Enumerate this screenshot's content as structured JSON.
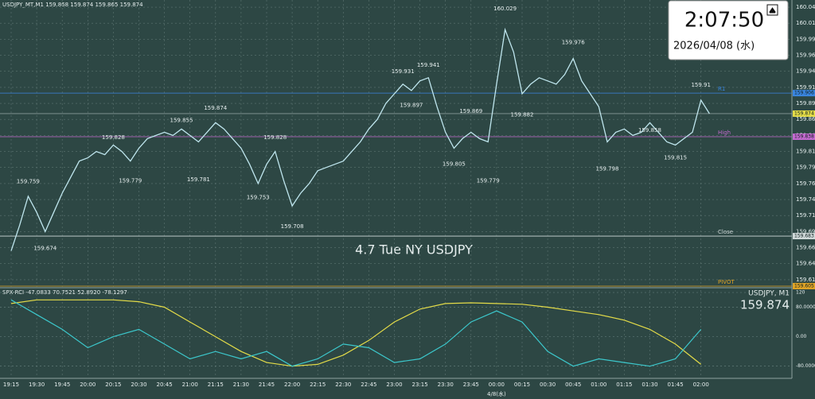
{
  "chart_data": {
    "type": "line",
    "title": "4.7 Tue NY USDJPY",
    "header": "USDJPY_MT,M1  159.868 159.874 159.865 159.874",
    "categories": [
      "19:15",
      null,
      null,
      "19:30",
      null,
      null,
      "19:45",
      null,
      null,
      "20:00",
      null,
      null,
      "20:15",
      null,
      null,
      "20:30",
      null,
      null,
      "20:45",
      null,
      null,
      "21:00",
      null,
      null,
      "21:15",
      null,
      null,
      "21:30",
      null,
      null,
      "21:45",
      null,
      null,
      "22:00",
      null,
      null,
      "22:15",
      null,
      null,
      "22:30",
      null,
      null,
      "22:45",
      null,
      null,
      "23:00",
      null,
      null,
      "23:15",
      null,
      null,
      "23:30",
      null,
      null,
      "23:45",
      null,
      null,
      "00:00",
      null,
      null,
      "00:15",
      null,
      null,
      "00:30",
      null,
      null,
      "00:45",
      null,
      null,
      "01:00",
      null,
      null,
      "01:15",
      null,
      null,
      "01:30",
      null,
      null,
      "01:45",
      null,
      null,
      "02:00",
      null
    ],
    "date_label": "4/8(水)",
    "series": [
      {
        "name": "USDJPY, M1",
        "color": "#bfe6ee",
        "values": [
          159.66,
          159.7,
          159.745,
          159.72,
          159.69,
          159.72,
          159.75,
          159.775,
          159.8,
          159.805,
          159.815,
          159.81,
          159.825,
          159.815,
          159.8,
          159.82,
          159.835,
          159.84,
          159.845,
          159.84,
          159.85,
          159.84,
          159.83,
          159.845,
          159.86,
          159.85,
          159.835,
          159.82,
          159.795,
          159.765,
          159.795,
          159.815,
          159.77,
          159.73,
          159.75,
          159.765,
          159.785,
          159.79,
          159.795,
          159.8,
          159.815,
          159.83,
          159.85,
          159.865,
          159.89,
          159.905,
          159.92,
          159.91,
          159.925,
          159.93,
          159.885,
          159.845,
          159.82,
          159.835,
          159.845,
          159.835,
          159.83,
          159.92,
          160.005,
          159.97,
          159.905,
          159.92,
          159.93,
          159.925,
          159.92,
          159.935,
          159.96,
          159.925,
          159.905,
          159.885,
          159.83,
          159.845,
          159.85,
          159.84,
          159.845,
          159.86,
          159.845,
          159.83,
          159.825,
          159.835,
          159.845,
          159.895,
          159.874
        ]
      }
    ],
    "point_labels": [
      null,
      null,
      159.759,
      null,
      159.674,
      null,
      null,
      null,
      null,
      null,
      null,
      null,
      159.828,
      null,
      159.779,
      null,
      null,
      null,
      null,
      null,
      159.855,
      null,
      159.781,
      null,
      159.874,
      null,
      null,
      null,
      null,
      159.753,
      null,
      159.828,
      null,
      159.708,
      null,
      null,
      null,
      null,
      null,
      null,
      null,
      null,
      null,
      null,
      null,
      null,
      159.931,
      159.897,
      null,
      159.941,
      null,
      null,
      159.805,
      null,
      159.869,
      null,
      159.779,
      null,
      160.029,
      null,
      159.882,
      null,
      null,
      null,
      null,
      null,
      159.976,
      null,
      null,
      null,
      159.798,
      null,
      null,
      null,
      null,
      159.858,
      null,
      null,
      159.815,
      null,
      null,
      159.91,
      null
    ],
    "ylim": [
      159.6,
      160.05
    ],
    "yticks": [
      {
        "value": 160.04,
        "label": "160.040"
      },
      160.015,
      {
        "value": 159.99,
        "label": "159.990"
      },
      159.965,
      {
        "value": 159.94,
        "label": "159.940"
      },
      159.915,
      {
        "value": 159.89,
        "label": "159.890"
      },
      159.865,
      {
        "value": 159.84,
        "label": "159.840"
      },
      159.815,
      {
        "value": 159.79,
        "label": "159.790"
      },
      159.765,
      {
        "value": 159.74,
        "label": "159.740"
      },
      159.715,
      {
        "value": 159.69,
        "label": "159.690"
      },
      159.665,
      {
        "value": 159.64,
        "label": "159.640"
      },
      159.615
    ],
    "grid": true,
    "levels": [
      {
        "name": "R1",
        "value": 159.906,
        "color": "#3a86e0"
      },
      {
        "name": "High",
        "value": 159.838,
        "color": "#c46ad0"
      },
      {
        "name": "Close",
        "value": 159.683,
        "color": "#cfd8d8"
      },
      {
        "name": "PIVOT",
        "value": 159.605,
        "color": "#e0a426"
      }
    ]
  },
  "oscillator": {
    "header": "SPX-RCI -47.0833 70.7521 52.8920 -78.1297",
    "x": [
      "19:15",
      "19:30",
      "19:45",
      "20:00",
      "20:15",
      "20:30",
      "20:45",
      "21:00",
      "21:15",
      "21:30",
      "21:45",
      "22:00",
      "22:15",
      "22:30",
      "22:45",
      "23:00",
      "23:15",
      "23:30",
      "23:45",
      "00:00",
      "00:15",
      "00:30",
      "00:45",
      "01:00",
      "01:15",
      "01:30",
      "01:45",
      "02:00"
    ],
    "ylim": [
      -100,
      120
    ],
    "yticks": [
      120,
      {
        "value": 80,
        "label": "80.0000"
      },
      {
        "value": 0,
        "label": "0.00"
      },
      {
        "value": -80,
        "label": "-80.0000"
      }
    ],
    "series": [
      {
        "color": "#e4dc48",
        "values": [
          90,
          100,
          100,
          100,
          100,
          95,
          80,
          40,
          0,
          -40,
          -70,
          -80,
          -75,
          -50,
          -10,
          40,
          75,
          90,
          92,
          90,
          88,
          80,
          70,
          60,
          45,
          20,
          -20,
          -75
        ]
      },
      {
        "color": "#3cc8cc",
        "values": [
          100,
          60,
          20,
          -30,
          0,
          20,
          -20,
          -60,
          -40,
          -60,
          -40,
          -80,
          -60,
          -20,
          -30,
          -70,
          -60,
          -20,
          40,
          70,
          40,
          -40,
          -80,
          -60,
          -70,
          -80,
          -60,
          20
        ]
      }
    ]
  },
  "clock": {
    "time": "2:07:50",
    "date": "2026/04/08 (水)"
  }
}
